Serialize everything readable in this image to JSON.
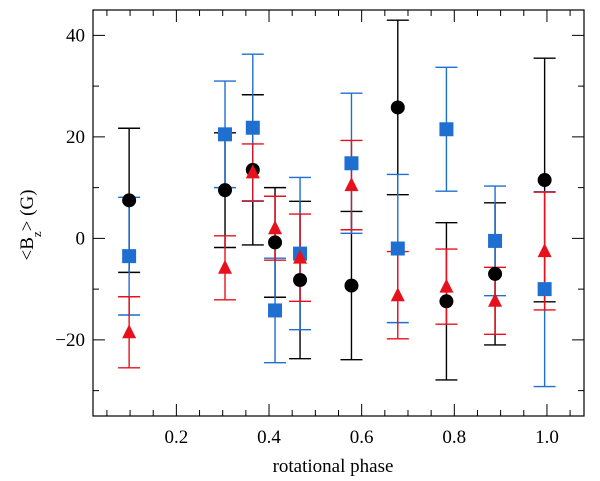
{
  "chart_data": {
    "type": "scatter",
    "title": "",
    "xlabel": "rotational phase",
    "ylabel_parts": {
      "open": "<B",
      "sub": "z",
      "close": "> (G)"
    },
    "xlim": [
      0.02,
      1.08
    ],
    "ylim": [
      -35,
      45
    ],
    "x_major_ticks": [
      0.2,
      0.4,
      0.6,
      0.8,
      1.0
    ],
    "x_tick_labels": [
      "0.2",
      "0.4",
      "0.6",
      "0.8",
      "1.0"
    ],
    "x_minor_step": 0.05,
    "y_major_ticks": [
      -20,
      0,
      20,
      40
    ],
    "y_tick_labels": [
      "−20",
      "0",
      "20",
      "40"
    ],
    "y_minor_step": 10,
    "series": [
      {
        "name": "black circles",
        "marker": "circle",
        "color": "#000000",
        "points": [
          {
            "x": 0.098,
            "y": 7.5,
            "err": 14.2
          },
          {
            "x": 0.305,
            "y": 9.5,
            "err": 11.3
          },
          {
            "x": 0.365,
            "y": 13.5,
            "err": 14.8
          },
          {
            "x": 0.413,
            "y": -0.8,
            "err": 10.8
          },
          {
            "x": 0.467,
            "y": -8.2,
            "err": 15.5
          },
          {
            "x": 0.578,
            "y": -9.3,
            "err": 14.6
          },
          {
            "x": 0.678,
            "y": 25.8,
            "err": 17.2
          },
          {
            "x": 0.783,
            "y": -12.4,
            "err": 15.5
          },
          {
            "x": 0.888,
            "y": -7.0,
            "err": 14.0
          },
          {
            "x": 0.995,
            "y": 11.5,
            "err": 24.0
          }
        ]
      },
      {
        "name": "blue squares",
        "marker": "square",
        "color": "#1f6fd1",
        "points": [
          {
            "x": 0.098,
            "y": -3.5,
            "err": 11.6
          },
          {
            "x": 0.305,
            "y": 20.5,
            "err": 10.5
          },
          {
            "x": 0.365,
            "y": 21.8,
            "err": 14.5
          },
          {
            "x": 0.413,
            "y": -14.2,
            "err": 10.3
          },
          {
            "x": 0.467,
            "y": -3.0,
            "err": 15.0
          },
          {
            "x": 0.578,
            "y": 14.8,
            "err": 13.8
          },
          {
            "x": 0.678,
            "y": -2.0,
            "err": 14.6
          },
          {
            "x": 0.783,
            "y": 21.5,
            "err": 12.2
          },
          {
            "x": 0.888,
            "y": -0.5,
            "err": 10.8
          },
          {
            "x": 0.995,
            "y": -10.0,
            "err": 19.2
          }
        ]
      },
      {
        "name": "red triangles",
        "marker": "triangle",
        "color": "#e8101c",
        "points": [
          {
            "x": 0.098,
            "y": -18.5,
            "err": 7.0
          },
          {
            "x": 0.305,
            "y": -5.8,
            "err": 6.3
          },
          {
            "x": 0.365,
            "y": 13.0,
            "err": 5.6
          },
          {
            "x": 0.413,
            "y": 2.0,
            "err": 6.3
          },
          {
            "x": 0.467,
            "y": -3.8,
            "err": 8.6
          },
          {
            "x": 0.578,
            "y": 10.5,
            "err": 8.8
          },
          {
            "x": 0.678,
            "y": -11.2,
            "err": 8.6
          },
          {
            "x": 0.783,
            "y": -9.5,
            "err": 7.4
          },
          {
            "x": 0.888,
            "y": -12.3,
            "err": 6.6
          },
          {
            "x": 0.995,
            "y": -2.5,
            "err": 11.6
          }
        ]
      }
    ]
  }
}
